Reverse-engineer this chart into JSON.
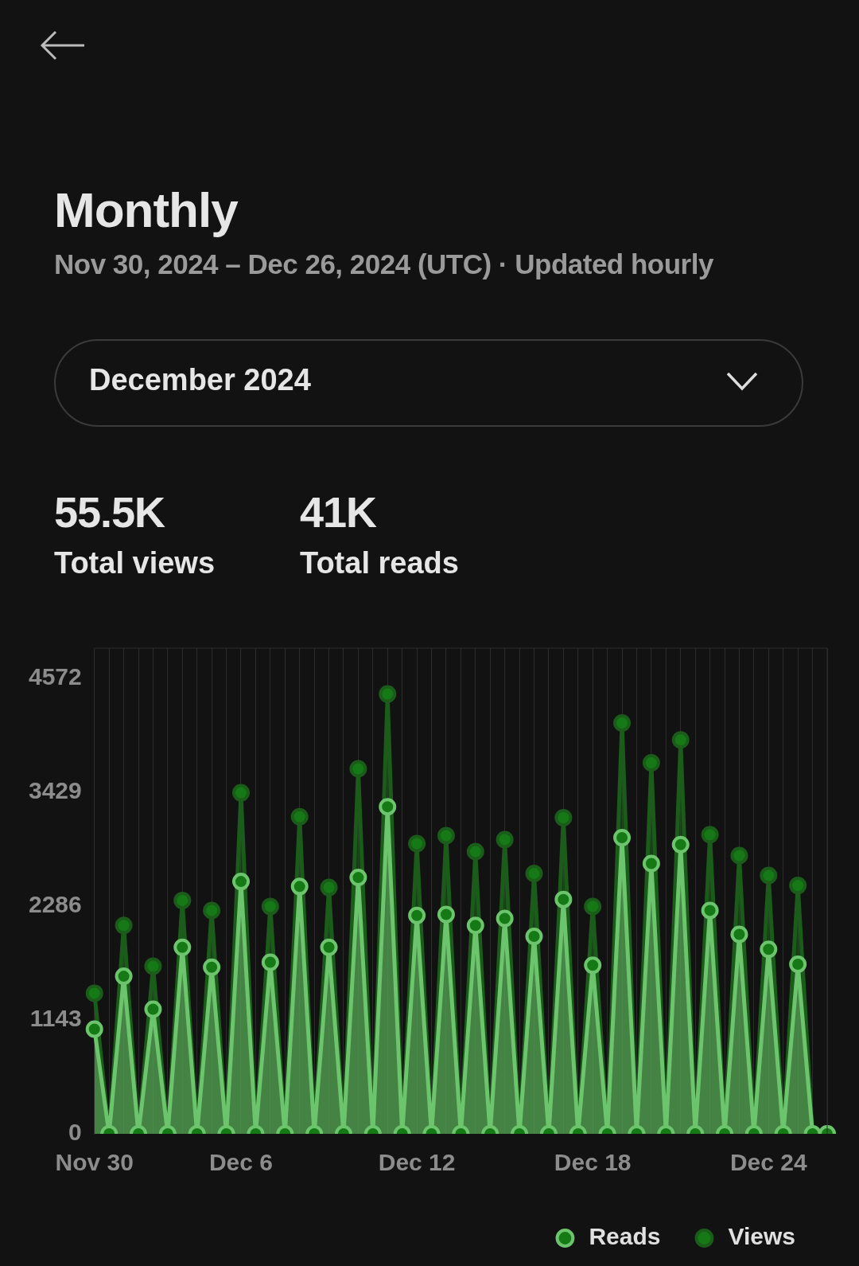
{
  "chart_data": {
    "type": "area",
    "title": "Monthly",
    "subtitle": "Nov 30, 2024 – Dec 26, 2024 (UTC) · Updated hourly",
    "annotations": [
      "December 2024",
      "55.5K",
      "Total views",
      "41K",
      "Total reads"
    ],
    "categories": [
      "Nov 30",
      null,
      null,
      null,
      null,
      null,
      null,
      null,
      null,
      null,
      "Dec 6",
      null,
      null,
      null,
      null,
      null,
      null,
      null,
      null,
      null,
      null,
      null,
      "Dec 12",
      null,
      null,
      null,
      null,
      null,
      null,
      null,
      null,
      null,
      null,
      null,
      "Dec 18",
      null,
      null,
      null,
      null,
      null,
      null,
      null,
      null,
      null,
      null,
      null,
      "Dec 24",
      null,
      null,
      null,
      null
    ],
    "series": [
      {
        "name": "Reads",
        "color": "#6cc46c",
        "values": [
          1050,
          0,
          1580,
          0,
          1250,
          0,
          1870,
          0,
          1670,
          0,
          2530,
          0,
          1720,
          0,
          2480,
          0,
          1870,
          0,
          2570,
          0,
          3280,
          0,
          2190,
          0,
          2200,
          0,
          2090,
          0,
          2160,
          0,
          1980,
          0,
          2350,
          0,
          1690,
          0,
          2970,
          0,
          2710,
          0,
          2900,
          0,
          2240,
          0,
          2000,
          0,
          1850,
          0,
          1700,
          0,
          0
        ]
      },
      {
        "name": "Views",
        "color": "#1b5c1b",
        "values": [
          1410,
          0,
          2090,
          0,
          1680,
          0,
          2340,
          0,
          2240,
          0,
          3420,
          0,
          2280,
          0,
          3180,
          0,
          2470,
          0,
          3660,
          0,
          4410,
          0,
          2910,
          0,
          2990,
          0,
          2830,
          0,
          2950,
          0,
          2610,
          0,
          3170,
          0,
          2280,
          0,
          4120,
          0,
          3720,
          0,
          3950,
          0,
          3000,
          0,
          2790,
          0,
          2590,
          0,
          2490,
          0,
          0
        ]
      }
    ],
    "ylim": [
      0,
      4870
    ],
    "yticks": [
      0,
      1143,
      2286,
      3429,
      4572
    ],
    "grid": "x",
    "legend": "bottom right",
    "marker": "circle"
  }
}
